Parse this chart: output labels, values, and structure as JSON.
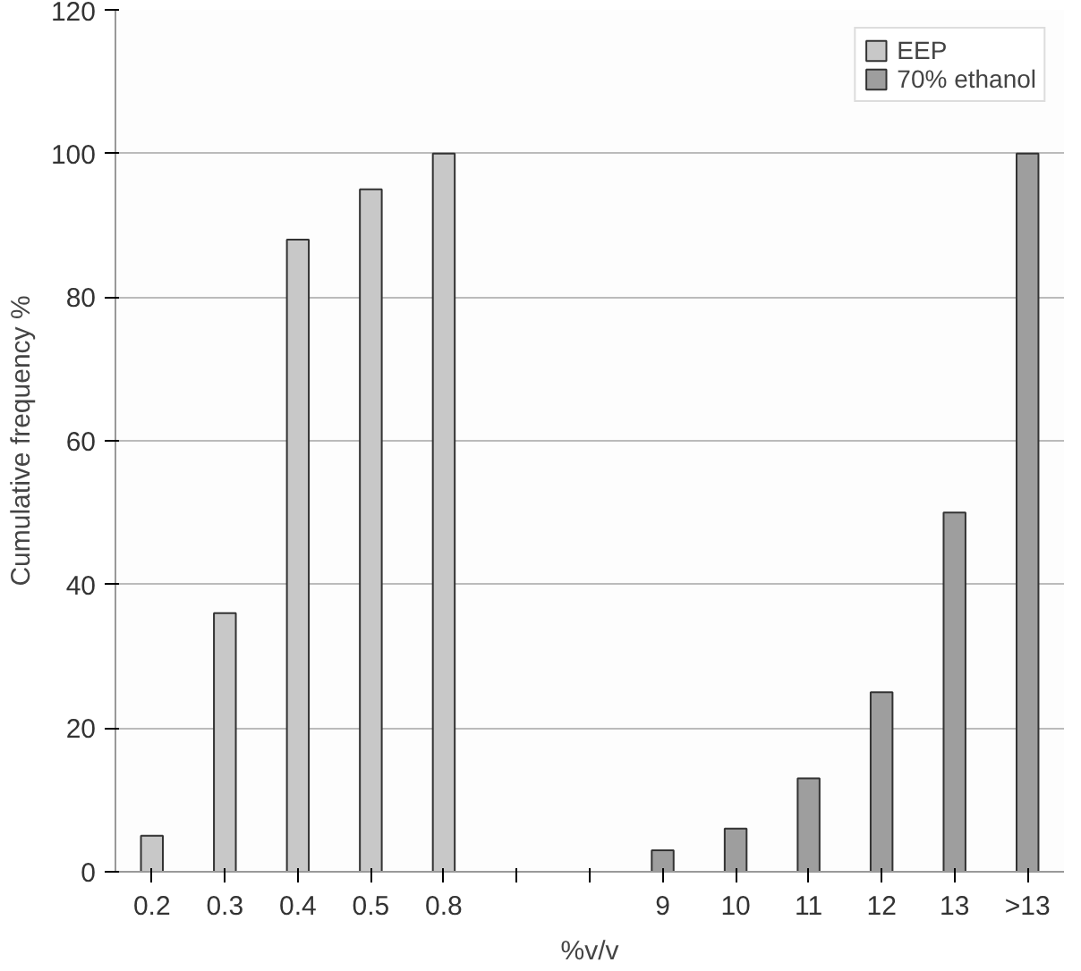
{
  "chart_data": {
    "type": "bar",
    "xlabel": "%v/v",
    "ylabel": "Cumulative frequency %",
    "categories": [
      "0.2",
      "0.3",
      "0.4",
      "0.5",
      "0.8",
      null,
      null,
      "9",
      "10",
      "11",
      "12",
      "13",
      ">13"
    ],
    "series": [
      {
        "name": "EEP",
        "color": "#c8c8c8",
        "values": [
          5,
          36,
          88,
          95,
          100,
          null,
          null,
          null,
          null,
          null,
          null,
          null,
          null
        ]
      },
      {
        "name": "70% ethanol",
        "color": "#9e9e9e",
        "values": [
          null,
          null,
          null,
          null,
          null,
          null,
          null,
          3,
          6,
          13,
          25,
          50,
          100
        ]
      }
    ],
    "ylim": [
      0,
      120
    ],
    "yticks": [
      0,
      20,
      40,
      60,
      80,
      100,
      120
    ],
    "grid": "y",
    "legend": "top right"
  }
}
